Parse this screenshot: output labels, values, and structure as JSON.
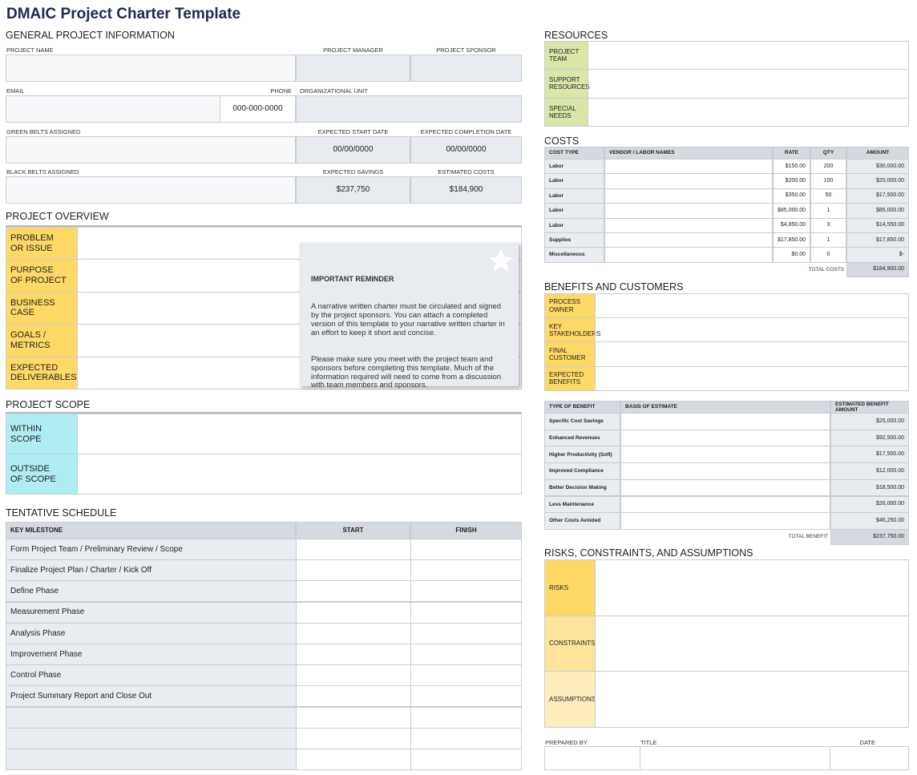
{
  "title": "DMAIC Project Charter Template",
  "general": {
    "heading": "GENERAL PROJECT INFORMATION",
    "project_name": "PROJECT NAME",
    "project_manager": "PROJECT MANAGER",
    "project_sponsor": "PROJECT SPONSOR",
    "email": "EMAIL",
    "phone": "PHONE",
    "phone_value": "000-000-0000",
    "org_unit": "ORGANIZATIONAL UNIT",
    "green_belts": "GREEN BELTS ASSIGNED",
    "start_date": "EXPECTED START DATE",
    "start_value": "00/00/0000",
    "completion_date": "EXPECTED COMPLETION DATE",
    "completion_value": "00/00/0000",
    "black_belts": "BLACK BELTS ASSIGNED",
    "savings": "EXPECTED SAVINGS",
    "savings_value": "$237,750",
    "costs": "ESTIMATED COSTS",
    "costs_value": "$184,900"
  },
  "overview": {
    "heading": "PROJECT OVERVIEW",
    "rows": [
      "PROBLEM\nOR ISSUE",
      "PURPOSE\nOF PROJECT",
      "BUSINESS\nCASE",
      "GOALS /\nMETRICS",
      "EXPECTED\nDELIVERABLES"
    ]
  },
  "reminder": {
    "title": "IMPORTANT REMINDER",
    "paragraphs": [
      "A narrative written charter must be circulated and signed by the project sponsors. You can attach a completed version of this template to your narrative written charter in an effort to keep it short and concise.",
      "Please make sure you meet with the project team and sponsors before completing this template. Much of the information required will need to come from a discussion with team members and sponsors."
    ]
  },
  "scope": {
    "heading": "PROJECT SCOPE",
    "rows": [
      "WITHIN\nSCOPE",
      "OUTSIDE\nOF SCOPE"
    ]
  },
  "schedule": {
    "heading": "TENTATIVE SCHEDULE",
    "columns": [
      "KEY MILESTONE",
      "START",
      "FINISH"
    ],
    "rows": [
      "Form Project Team / Preliminary Review / Scope",
      "Finalize Project Plan / Charter / Kick Off",
      "Define Phase",
      "Measurement Phase",
      "Analysis Phase",
      "Improvement Phase",
      "Control Phase",
      "Project Summary Report and Close Out"
    ]
  },
  "resources": {
    "heading": "RESOURCES",
    "rows": [
      "PROJECT\nTEAM",
      "SUPPORT\nRESOURCES",
      "SPECIAL\nNEEDS"
    ]
  },
  "costs": {
    "heading": "COSTS",
    "columns": [
      "COST TYPE",
      "VENDOR / LABOR NAMES",
      "RATE",
      "QTY",
      "AMOUNT"
    ],
    "rows": [
      {
        "type": "Labor",
        "rate": "$150.00",
        "qty": "200",
        "amount": "$30,000.00"
      },
      {
        "type": "Labor",
        "rate": "$200.00",
        "qty": "100",
        "amount": "$20,000.00"
      },
      {
        "type": "Labor",
        "rate": "$350.00",
        "qty": "50",
        "amount": "$17,500.00"
      },
      {
        "type": "Labor",
        "rate": "$85,000.00",
        "qty": "1",
        "amount": "$85,000.00"
      },
      {
        "type": "Labor",
        "rate": "$4,850.00",
        "qty": "3",
        "amount": "$14,550.00"
      },
      {
        "type": "Supplies",
        "rate": "$17,850.00",
        "qty": "1",
        "amount": "$17,850.00"
      },
      {
        "type": "Miscellaneous",
        "rate": "$0.00",
        "qty": "0",
        "amount": "$-"
      }
    ],
    "total_label": "TOTAL COSTS",
    "total": "$184,900.00"
  },
  "benefits": {
    "heading": "BENEFITS AND CUSTOMERS",
    "rows": [
      "PROCESS\nOWNER",
      "KEY\nSTAKEHOLDERS",
      "FINAL\nCUSTOMER",
      "EXPECTED\nBENEFITS"
    ]
  },
  "benefit_table": {
    "columns": [
      "TYPE OF BENEFIT",
      "BASIS OF ESTIMATE",
      "ESTIMATED BENEFIT AMOUNT"
    ],
    "rows": [
      {
        "type": "Specific Cost Savings",
        "amount": "$25,000.00"
      },
      {
        "type": "Enhanced Revenues",
        "amount": "$92,500.00"
      },
      {
        "type": "Higher Productivity (Soft)",
        "amount": "$17,500.00"
      },
      {
        "type": "Improved Compliance",
        "amount": "$12,000.00"
      },
      {
        "type": "Better Decision Making",
        "amount": "$18,500.00"
      },
      {
        "type": "Less Maintenance",
        "amount": "$26,000.00"
      },
      {
        "type": "Other Costs Avoided",
        "amount": "$46,250.00"
      }
    ],
    "total_label": "TOTAL BENEFIT",
    "total": "$237,750.00"
  },
  "risks": {
    "heading": "RISKS, CONSTRAINTS, AND ASSUMPTIONS",
    "rows": [
      "RISKS",
      "CONSTRAINTS",
      "ASSUMPTIONS"
    ]
  },
  "signoff": {
    "prepared_by": "PREPARED BY",
    "title": "TITLE",
    "date": "DATE"
  }
}
